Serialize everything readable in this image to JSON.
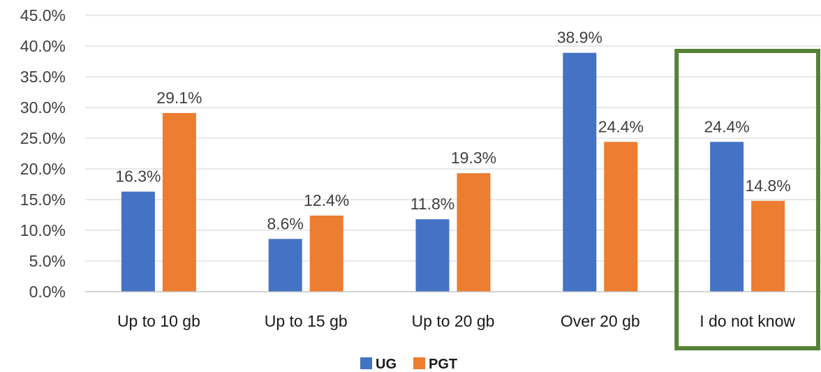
{
  "chart_data": {
    "type": "bar",
    "categories": [
      "Up to 10 gb",
      "Up to 15 gb",
      "Up to 20 gb",
      "Over 20 gb",
      "I do not know"
    ],
    "series": [
      {
        "name": "UG",
        "values": [
          16.3,
          8.6,
          11.8,
          38.9,
          24.4
        ],
        "labels": [
          "16.3%",
          "8.6%",
          "11.8%",
          "38.9%",
          "24.4%"
        ],
        "color": "#4472C4"
      },
      {
        "name": "PGT",
        "values": [
          29.1,
          12.4,
          19.3,
          24.4,
          14.8
        ],
        "labels": [
          "29.1%",
          "12.4%",
          "19.3%",
          "24.4%",
          "14.8%"
        ],
        "color": "#ED7D31"
      }
    ],
    "yticks": [
      "0.0%",
      "5.0%",
      "10.0%",
      "15.0%",
      "20.0%",
      "25.0%",
      "30.0%",
      "35.0%",
      "40.0%",
      "45.0%"
    ],
    "ylim": [
      0,
      45
    ],
    "grid": true,
    "legend_position": "bottom",
    "highlight": {
      "category": "I do not know",
      "color": "#548235"
    },
    "gridline_color": "#d9d9d9"
  }
}
